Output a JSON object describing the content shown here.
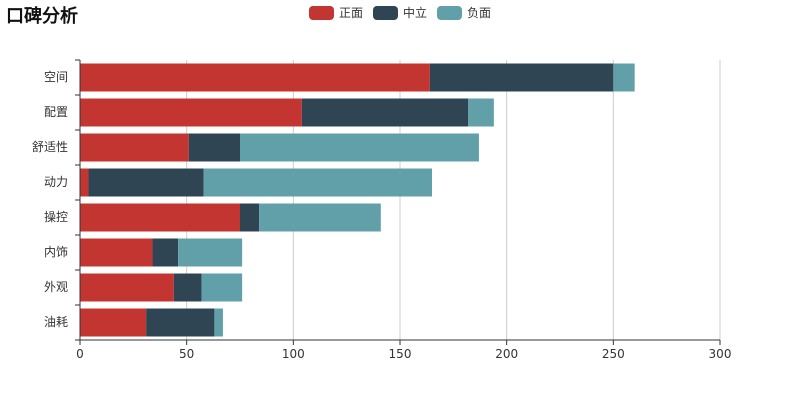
{
  "title": "口碑分析",
  "chart_data": {
    "type": "bar",
    "orientation": "horizontal",
    "stacked": true,
    "title": "口碑分析",
    "categories": [
      "空间",
      "配置",
      "舒适性",
      "动力",
      "操控",
      "内饰",
      "外观",
      "油耗"
    ],
    "series": [
      {
        "name": "正面",
        "color": "#c23531",
        "values": [
          164,
          104,
          51,
          4,
          75,
          34,
          44,
          31
        ]
      },
      {
        "name": "中立",
        "color": "#2f4554",
        "values": [
          86,
          78,
          24,
          54,
          9,
          12,
          13,
          32
        ]
      },
      {
        "name": "负面",
        "color": "#61a0a8",
        "values": [
          10,
          12,
          112,
          107,
          57,
          30,
          19,
          4
        ]
      }
    ],
    "xlim": [
      0,
      300
    ],
    "xticks": [
      0,
      50,
      100,
      150,
      200,
      250,
      300
    ],
    "legend_position": "top-center",
    "grid": true
  }
}
